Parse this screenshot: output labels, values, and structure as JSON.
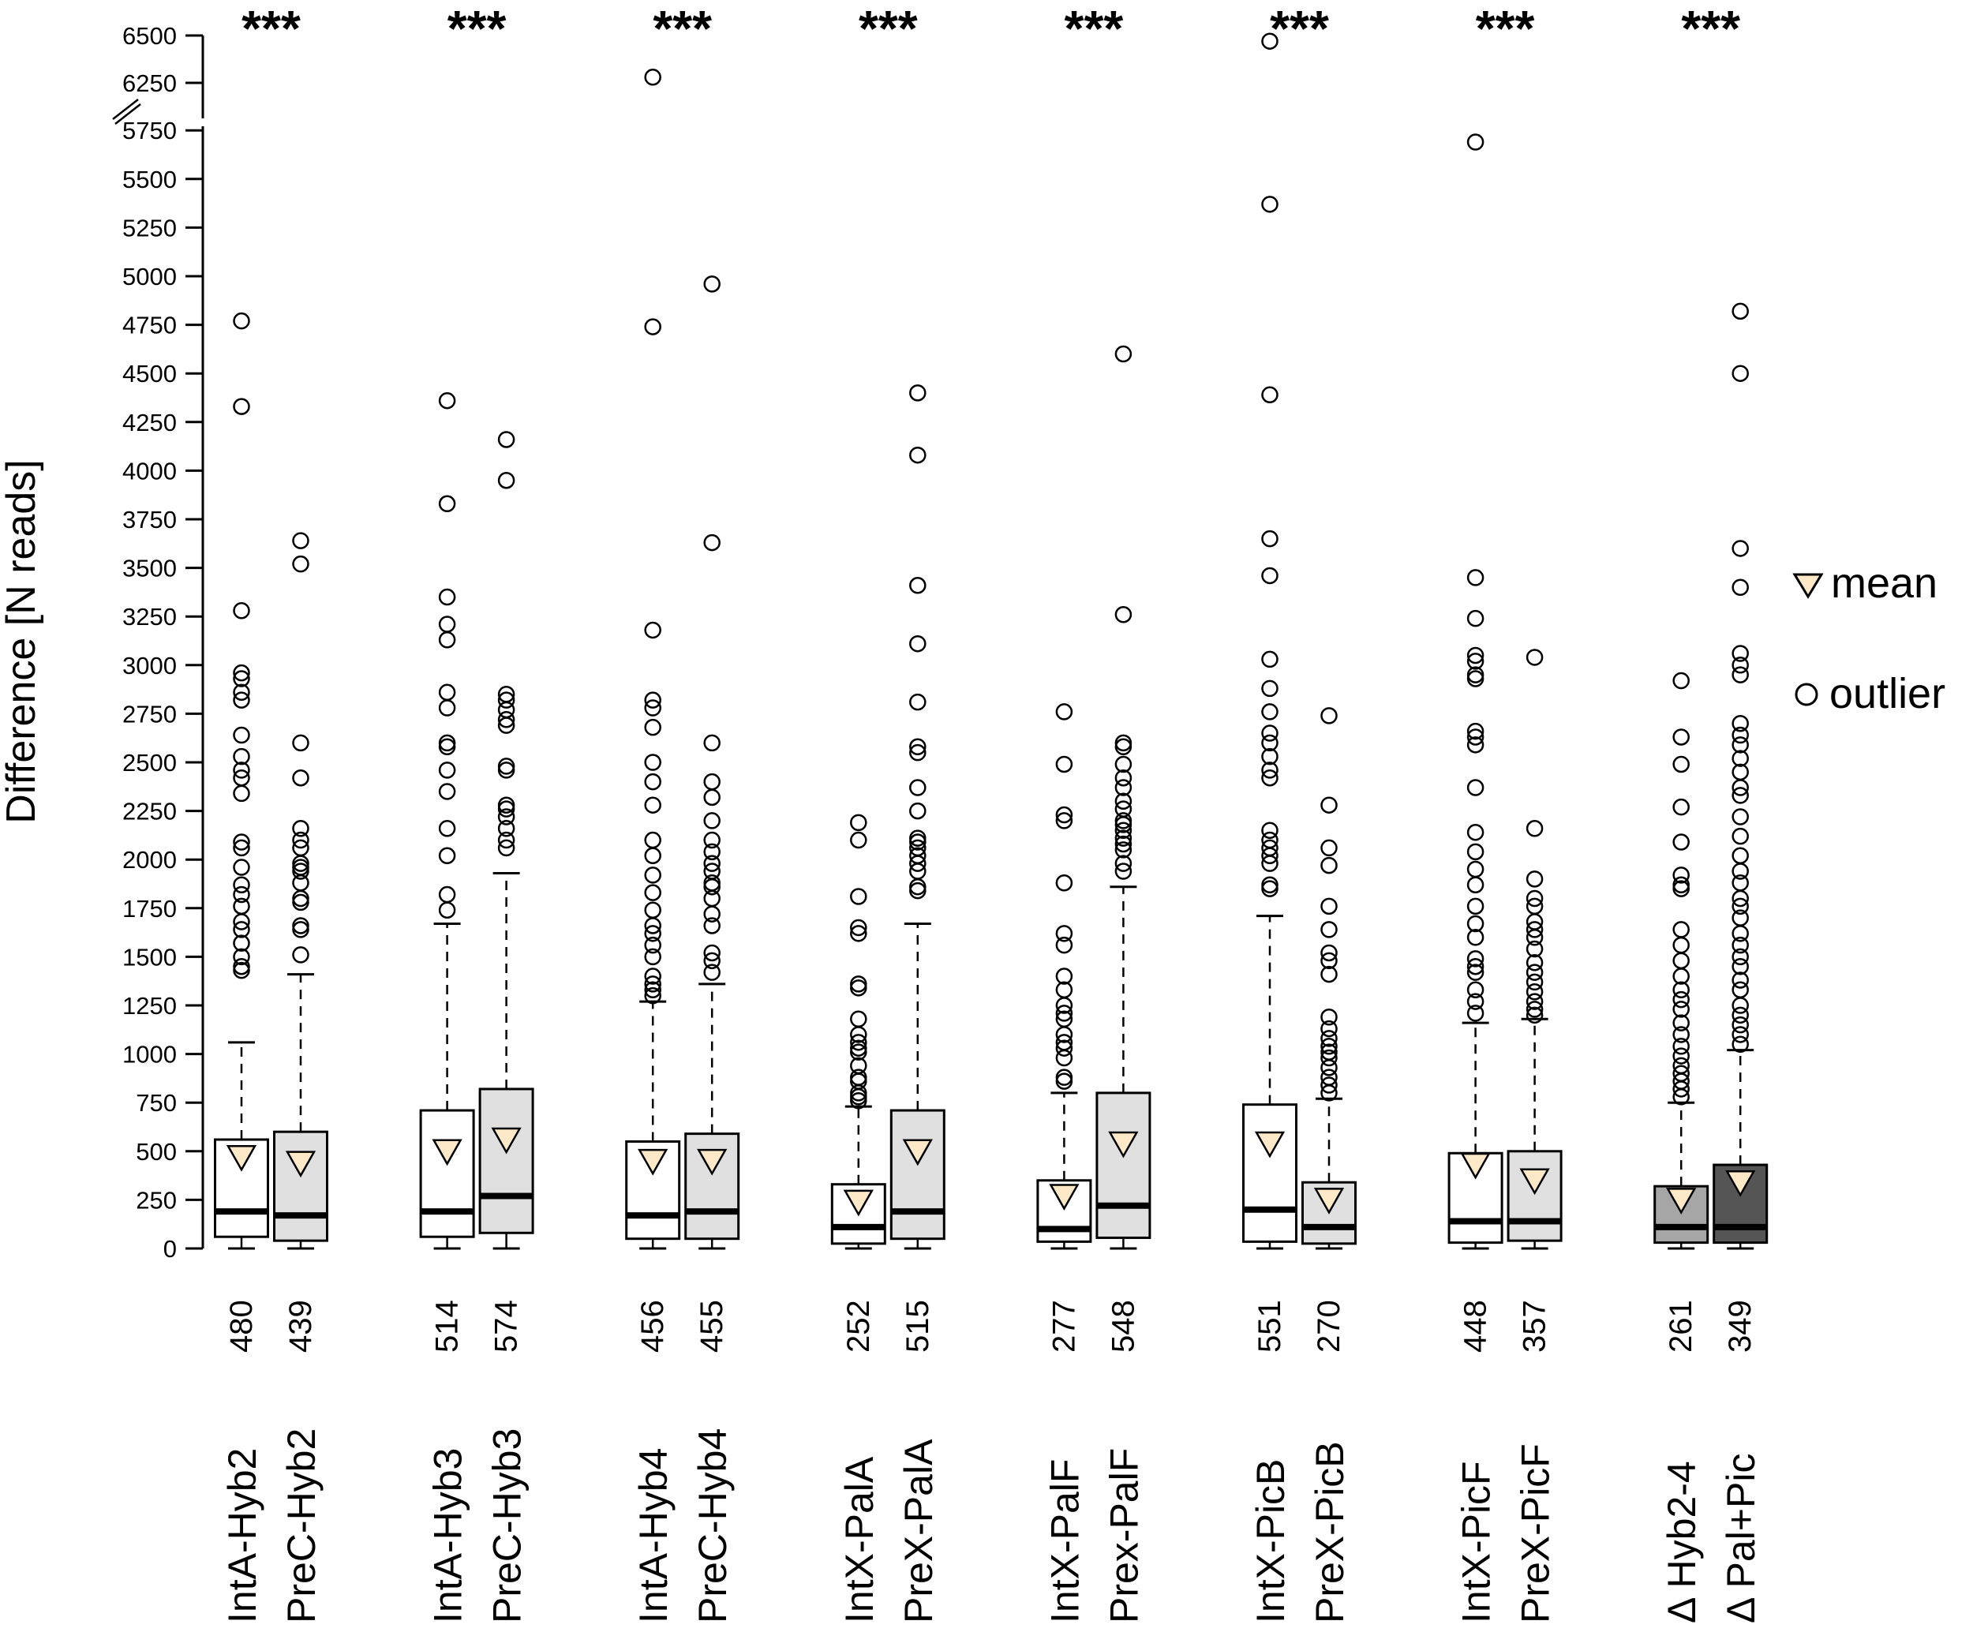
{
  "chart_data": {
    "type": "boxplot",
    "ylabel": "Difference [N reads]",
    "ylim": [
      0,
      6500
    ],
    "axis_break": [
      5750,
      6250
    ],
    "yticks": [
      0,
      250,
      500,
      750,
      1000,
      1250,
      1500,
      1750,
      2000,
      2250,
      2500,
      2750,
      3000,
      3250,
      3500,
      3750,
      4000,
      4250,
      4500,
      4750,
      5000,
      5250,
      5500,
      5750,
      6250,
      6500
    ],
    "significance": [
      "***",
      "***",
      "***",
      "***",
      "***",
      "***",
      "***",
      "***"
    ],
    "legend": {
      "mean": "mean",
      "outlier": "outlier",
      "placement": "right"
    },
    "colors": {
      "mean": "#fde8c8",
      "box_a": "#ffffff",
      "box_b": "#e0e0e0",
      "delta_a": "#a6a6a6",
      "delta_b": "#555555"
    },
    "boxes": [
      {
        "label": "IntA-Hyb2",
        "n": "480",
        "group": 0,
        "fill": "box_a",
        "min": 0,
        "q1": 60,
        "median": 190,
        "q3": 560,
        "whisker_high": 1060,
        "mean": 470,
        "outliers": [
          4770,
          4330,
          3280,
          2960,
          2930,
          2860,
          2820,
          2640,
          2530,
          2460,
          2420,
          2340,
          2090,
          2060,
          1960,
          1870,
          1820,
          1760,
          1680,
          1640,
          1570,
          1500,
          1450,
          1430
        ]
      },
      {
        "label": "PreC-Hyb2",
        "n": "439",
        "group": 0,
        "fill": "box_b",
        "min": 0,
        "q1": 40,
        "median": 170,
        "q3": 600,
        "whisker_high": 1410,
        "mean": 440,
        "outliers": [
          3640,
          3520,
          2600,
          2420,
          2160,
          2100,
          2060,
          1980,
          1960,
          1940,
          1880,
          1800,
          1780,
          1660,
          1640,
          1510
        ]
      },
      {
        "label": "IntA-Hyb3",
        "n": "514",
        "group": 1,
        "fill": "box_a",
        "min": 0,
        "q1": 60,
        "median": 190,
        "q3": 710,
        "whisker_high": 1670,
        "mean": 500,
        "outliers": [
          4360,
          3830,
          3350,
          3210,
          3130,
          2860,
          2780,
          2600,
          2580,
          2460,
          2350,
          2160,
          2020,
          1820,
          1740
        ]
      },
      {
        "label": "PreC-Hyb3",
        "n": "574",
        "group": 1,
        "fill": "box_b",
        "min": 0,
        "q1": 80,
        "median": 270,
        "q3": 820,
        "whisker_high": 1930,
        "mean": 560,
        "outliers": [
          4160,
          3950,
          2850,
          2820,
          2770,
          2720,
          2690,
          2480,
          2460,
          2280,
          2260,
          2220,
          2160,
          2100,
          2060
        ]
      },
      {
        "label": "IntA-Hyb4",
        "n": "456",
        "group": 2,
        "fill": "box_a",
        "min": 0,
        "q1": 50,
        "median": 170,
        "q3": 550,
        "whisker_high": 1270,
        "mean": 450,
        "outliers": [
          6280,
          4740,
          3180,
          2820,
          2780,
          2680,
          2500,
          2400,
          2280,
          2100,
          2020,
          1920,
          1830,
          1740,
          1660,
          1620,
          1560,
          1500,
          1400,
          1360,
          1330,
          1300
        ]
      },
      {
        "label": "PreC-Hyb4",
        "n": "455",
        "group": 2,
        "fill": "box_b",
        "min": 0,
        "q1": 50,
        "median": 190,
        "q3": 590,
        "whisker_high": 1360,
        "mean": 450,
        "outliers": [
          4960,
          3630,
          2600,
          2400,
          2320,
          2200,
          2100,
          2040,
          1980,
          1940,
          1880,
          1860,
          1800,
          1720,
          1660,
          1520,
          1480,
          1420
        ]
      },
      {
        "label": "IntX-PalA",
        "n": "252",
        "group": 3,
        "fill": "box_a",
        "min": 0,
        "q1": 25,
        "median": 110,
        "q3": 330,
        "whisker_high": 730,
        "mean": 240,
        "outliers": [
          2190,
          2100,
          1810,
          1650,
          1620,
          1360,
          1340,
          1180,
          1100,
          1060,
          1030,
          1010,
          940,
          880,
          860,
          800,
          780,
          760
        ]
      },
      {
        "label": "PreX-PalA",
        "n": "515",
        "group": 3,
        "fill": "box_b",
        "min": 0,
        "q1": 50,
        "median": 190,
        "q3": 710,
        "whisker_high": 1670,
        "mean": 500,
        "outliers": [
          4400,
          4080,
          3410,
          3110,
          2810,
          2580,
          2550,
          2370,
          2250,
          2110,
          2090,
          2060,
          2020,
          1980,
          1940,
          1860,
          1840
        ]
      },
      {
        "label": "IntX-PalF",
        "n": "277",
        "group": 4,
        "fill": "box_a",
        "min": 0,
        "q1": 35,
        "median": 100,
        "q3": 350,
        "whisker_high": 800,
        "mean": 270,
        "outliers": [
          2760,
          2490,
          2230,
          2200,
          1880,
          1620,
          1560,
          1400,
          1330,
          1250,
          1210,
          1180,
          1100,
          1060,
          1030,
          980,
          880,
          860
        ]
      },
      {
        "label": "Prex-PalF",
        "n": "548",
        "group": 4,
        "fill": "box_b",
        "min": 0,
        "q1": 55,
        "median": 220,
        "q3": 800,
        "whisker_high": 1860,
        "mean": 540,
        "outliers": [
          4600,
          3260,
          2600,
          2580,
          2490,
          2420,
          2370,
          2300,
          2260,
          2200,
          2180,
          2150,
          2110,
          2080,
          2050,
          1980,
          1940
        ]
      },
      {
        "label": "IntX-PicB",
        "n": "551",
        "group": 5,
        "fill": "box_a",
        "min": 0,
        "q1": 35,
        "median": 200,
        "q3": 740,
        "whisker_high": 1710,
        "mean": 540,
        "outliers": [
          6470,
          5370,
          4390,
          3650,
          3460,
          3030,
          2880,
          2760,
          2650,
          2600,
          2530,
          2460,
          2420,
          2150,
          2100,
          2060,
          2020,
          1980,
          1870,
          1850
        ]
      },
      {
        "label": "PreX-PicB",
        "n": "270",
        "group": 5,
        "fill": "box_b",
        "min": 0,
        "q1": 25,
        "median": 110,
        "q3": 340,
        "whisker_high": 770,
        "mean": 250,
        "outliers": [
          2740,
          2280,
          2060,
          1970,
          1760,
          1640,
          1520,
          1480,
          1410,
          1190,
          1130,
          1080,
          1040,
          1010,
          980,
          930,
          880,
          840,
          800
        ]
      },
      {
        "label": "IntX-PicF",
        "n": "448",
        "group": 6,
        "fill": "box_a",
        "min": 0,
        "q1": 30,
        "median": 140,
        "q3": 490,
        "whisker_high": 1160,
        "mean": 430,
        "outliers": [
          5690,
          3450,
          3240,
          3050,
          3020,
          2950,
          2930,
          2660,
          2630,
          2590,
          2370,
          2140,
          2040,
          1950,
          1870,
          1760,
          1670,
          1600,
          1490,
          1450,
          1420,
          1330,
          1270,
          1210
        ]
      },
      {
        "label": "PreX-PicF",
        "n": "357",
        "group": 6,
        "fill": "box_b",
        "min": 0,
        "q1": 40,
        "median": 140,
        "q3": 500,
        "whisker_high": 1180,
        "mean": 350,
        "outliers": [
          3040,
          2160,
          1900,
          1800,
          1760,
          1680,
          1640,
          1600,
          1540,
          1470,
          1420,
          1370,
          1320,
          1270,
          1230,
          1200
        ]
      },
      {
        "label": "Δ Hyb2-4",
        "n": "261",
        "group": 7,
        "fill": "delta_a",
        "min": 0,
        "q1": 30,
        "median": 110,
        "q3": 320,
        "whisker_high": 750,
        "mean": 250,
        "outliers": [
          2920,
          2630,
          2490,
          2270,
          2090,
          1920,
          1870,
          1850,
          1640,
          1560,
          1480,
          1400,
          1330,
          1280,
          1230,
          1160,
          1100,
          1040,
          990,
          940,
          900,
          860,
          820,
          780
        ]
      },
      {
        "label": "Δ Pal+Pic",
        "n": "349",
        "group": 7,
        "fill": "delta_b",
        "min": 0,
        "q1": 30,
        "median": 110,
        "q3": 430,
        "whisker_high": 1020,
        "mean": 340,
        "outliers": [
          4820,
          4500,
          3600,
          3400,
          3060,
          3000,
          2950,
          2700,
          2640,
          2590,
          2520,
          2450,
          2370,
          2330,
          2220,
          2120,
          2020,
          1940,
          1880,
          1800,
          1760,
          1700,
          1620,
          1560,
          1500,
          1450,
          1380,
          1330,
          1250,
          1200,
          1150,
          1100,
          1050
        ]
      }
    ]
  }
}
